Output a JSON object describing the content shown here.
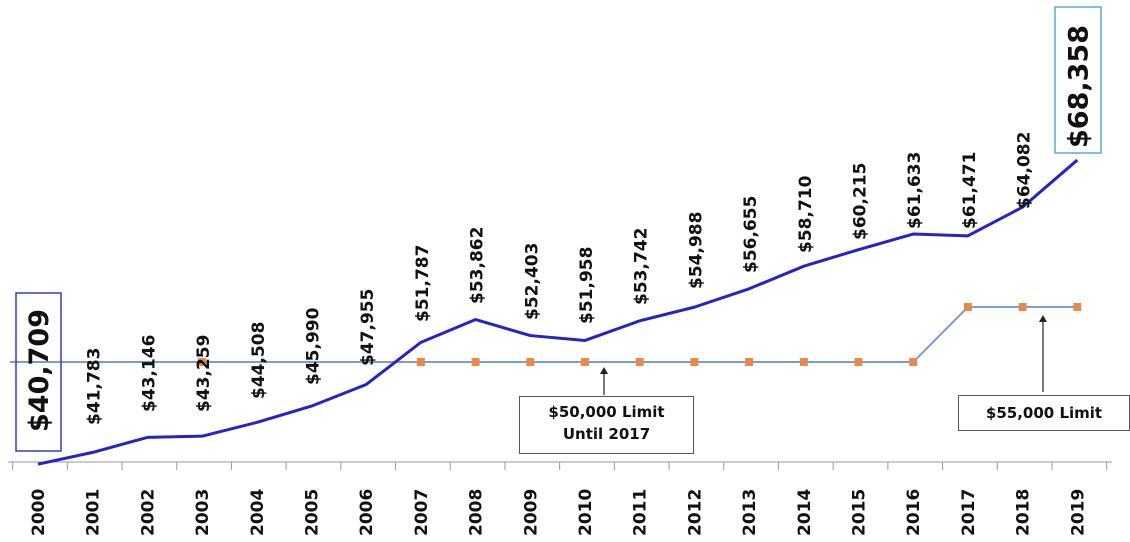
{
  "chart_data": {
    "type": "line",
    "title": "",
    "xlabel": "",
    "ylabel": "",
    "categories": [
      "2000",
      "2001",
      "2002",
      "2003",
      "2004",
      "2005",
      "2006",
      "2007",
      "2008",
      "2009",
      "2010",
      "2011",
      "2012",
      "2013",
      "2014",
      "2015",
      "2016",
      "2017",
      "2018",
      "2019"
    ],
    "series": [
      {
        "name": "",
        "color": "#2323c8",
        "values": [
          40709,
          41783,
          43146,
          43259,
          44508,
          45990,
          47955,
          51787,
          53862,
          52403,
          51958,
          53742,
          54988,
          56655,
          58710,
          60215,
          61633,
          61471,
          64082,
          68358
        ],
        "labels": [
          "$40,709",
          "$41,783",
          "$43,146",
          "$43,259",
          "$44,508",
          "$45,990",
          "$47,955",
          "$51,787",
          "$53,862",
          "$52,403",
          "$51,958",
          "$53,742",
          "$54,988",
          "$56,655",
          "$58,710",
          "$60,215",
          "$61,633",
          "$61,471",
          "$64,082",
          "$68,358"
        ]
      },
      {
        "name": "",
        "color": "#7c9ccf",
        "marker_color": "#e8894a",
        "values": [
          50000,
          50000,
          50000,
          50000,
          50000,
          50000,
          50000,
          50000,
          50000,
          50000,
          50000,
          50000,
          50000,
          50000,
          50000,
          50000,
          50000,
          55000,
          55000,
          55000
        ]
      }
    ],
    "ylim": [
      40000,
      71000
    ],
    "grid": false,
    "legend": "none",
    "annotations": [
      {
        "lines": [
          "$50,000 Limit",
          "Until 2017"
        ],
        "points_to": "2010"
      },
      {
        "lines": [
          "$55,000 Limit"
        ],
        "points_to": "2018"
      }
    ]
  }
}
